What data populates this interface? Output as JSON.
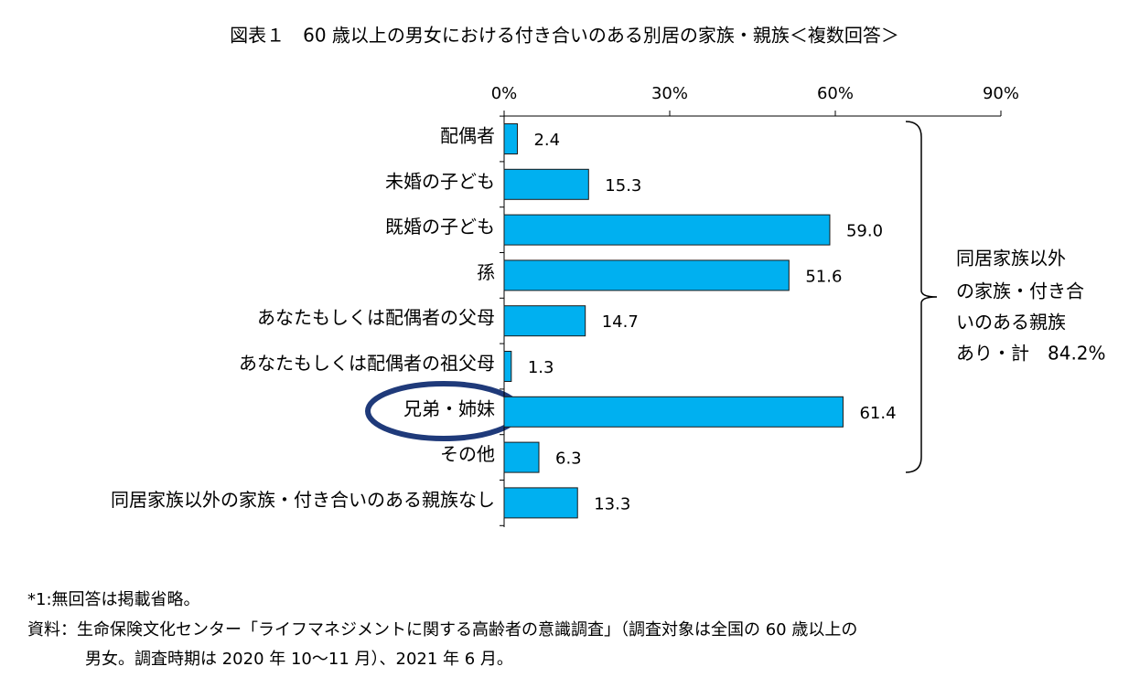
{
  "chart_data": {
    "type": "bar",
    "orientation": "horizontal",
    "title": "図表１　60 歳以上の男女における付き合いのある別居の家族・親族＜複数回答＞",
    "categories": [
      "配偶者",
      "未婚の子ども",
      "既婚の子ども",
      "孫",
      "あなたもしくは配偶者の父母",
      "あなたもしくは配偶者の祖父母",
      "兄弟・姉妹",
      "その他",
      "同居家族以外の家族・付き合いのある親族なし"
    ],
    "values": [
      2.4,
      15.3,
      59.0,
      51.6,
      14.7,
      1.3,
      61.4,
      6.3,
      13.3
    ],
    "value_labels": [
      "2.4",
      "15.3",
      "59.0",
      "51.6",
      "14.7",
      "1.3",
      "61.4",
      "6.3",
      "13.3"
    ],
    "color": "#00b0f0",
    "xlim": [
      0,
      90
    ],
    "xticks": [
      {
        "value": 0,
        "label": "0%"
      },
      {
        "value": 30,
        "label": "30%"
      },
      {
        "value": 60,
        "label": "60%"
      },
      {
        "value": 90,
        "label": "90%"
      }
    ],
    "annotation": [
      "同居家族以外",
      "の家族・付き合",
      "いのある親族",
      "あり・計　84.2%"
    ],
    "notes": [
      "*1:無回答は掲載省略。",
      "資料：生命保険文化センター「ライフマネジメントに関する高齢者の意識調査」（調査対象は全国の 60 歳以上の",
      "男女。調査時期は 2020 年 10～11 月）、2021 年 6 月。"
    ]
  }
}
